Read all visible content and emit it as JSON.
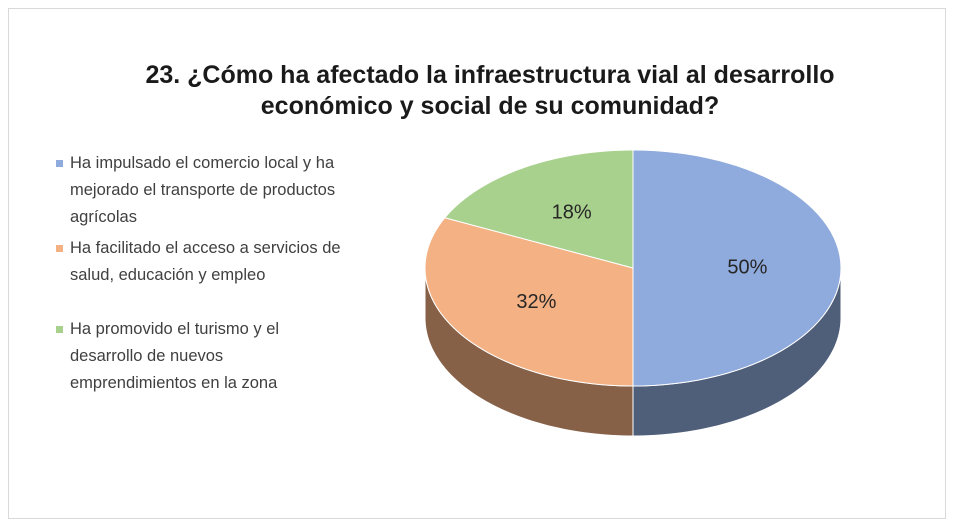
{
  "chart_data": {
    "type": "pie",
    "title": "23. ¿Cómo ha afectado la infraestructura vial al desarrollo económico y social de su comunidad?",
    "categories": [
      "Ha impulsado el comercio local y ha mejorado el transporte de productos agrícolas",
      "Ha facilitado el acceso a servicios de salud, educación y empleo",
      "Ha promovido el turismo y el desarrollo de nuevos emprendimientos en la zona"
    ],
    "values": [
      50,
      32,
      18
    ],
    "value_labels": [
      "50%",
      "32%",
      "18%"
    ],
    "colors": [
      "#8faadc",
      "#f4b183",
      "#a9d18e"
    ],
    "legend": "left",
    "style": "3d"
  }
}
